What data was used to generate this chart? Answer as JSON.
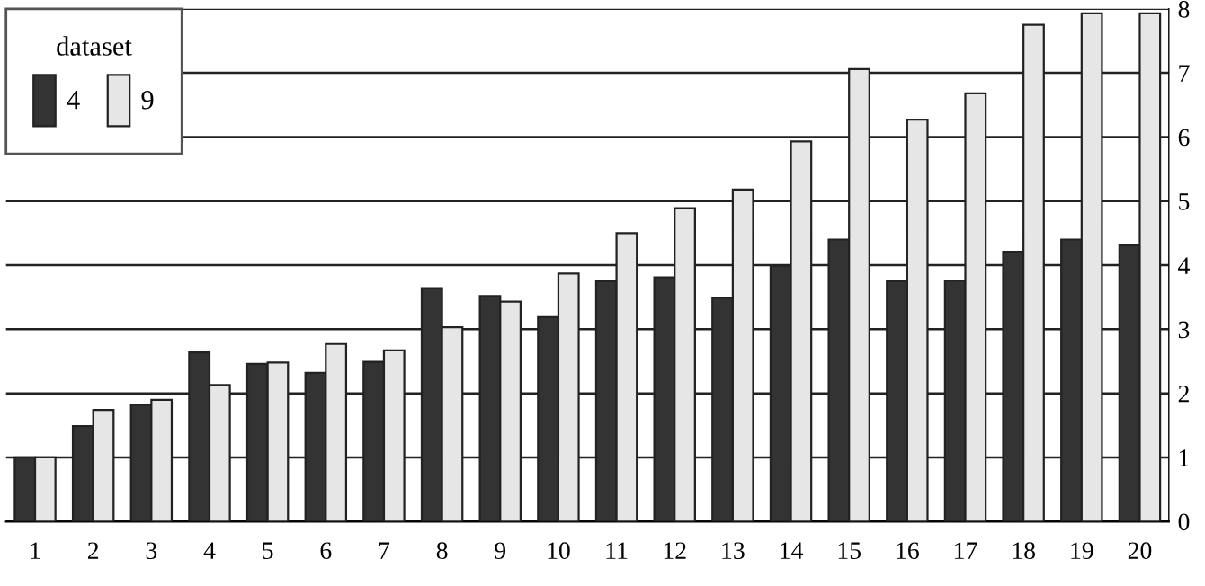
{
  "chart_data": {
    "type": "bar",
    "categories": [
      "1",
      "2",
      "3",
      "4",
      "5",
      "6",
      "7",
      "8",
      "9",
      "10",
      "11",
      "12",
      "13",
      "14",
      "15",
      "16",
      "17",
      "18",
      "19",
      "20"
    ],
    "series": [
      {
        "name": "4",
        "color": "#333333",
        "values": [
          1.0,
          1.49,
          1.82,
          2.64,
          2.46,
          2.32,
          2.49,
          3.64,
          3.52,
          3.19,
          3.75,
          3.81,
          3.49,
          3.99,
          4.4,
          3.75,
          3.76,
          4.21,
          4.4,
          4.31
        ]
      },
      {
        "name": "9",
        "color": "#e6e6e6",
        "values": [
          1.0,
          1.74,
          1.9,
          2.13,
          2.48,
          2.77,
          2.67,
          3.03,
          3.43,
          3.87,
          4.5,
          4.89,
          5.18,
          5.93,
          7.06,
          6.27,
          6.68,
          7.75,
          7.93,
          7.93
        ]
      }
    ],
    "legend_title": "dataset",
    "ylim": [
      0,
      8
    ],
    "yticks": [
      0,
      1,
      2,
      3,
      4,
      5,
      6,
      7,
      8
    ],
    "grid": "y",
    "legend": "top left"
  }
}
